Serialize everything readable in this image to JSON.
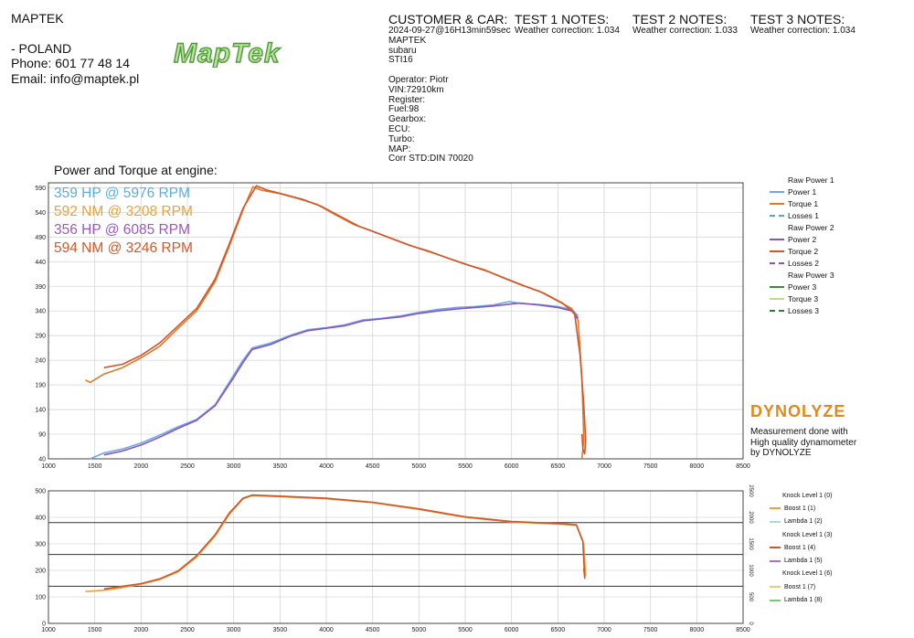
{
  "company": {
    "name": "MAPTEK",
    "country": " - POLAND",
    "phone": "Phone:  601 77 48 14",
    "email": "Email: info@maptek.pl",
    "logo_text": "MapTek"
  },
  "customer": {
    "title": "CUSTOMER & CAR:",
    "lines": [
      "2024-09-27@16H13min59sec",
      "MAPTEK",
      "subaru",
      "STI16",
      "",
      "Operator: Piotr",
      "VIN:72910km",
      "Register:",
      "Fuel:98",
      "Gearbox:",
      "ECU:",
      "Turbo:",
      "MAP:",
      "Corr STD:DIN 70020"
    ]
  },
  "notes": [
    {
      "title": "TEST 1 NOTES:",
      "text": "Weather correction: 1.034"
    },
    {
      "title": "TEST 2 NOTES:",
      "text": "Weather correction: 1.033"
    },
    {
      "title": "TEST 3 NOTES:",
      "text": "Weather correction: 1.034"
    }
  ],
  "results": {
    "heading": "Power and Torque at engine:",
    "lines": [
      {
        "text": "359 HP @ 5976 RPM",
        "color": "#5aaee0"
      },
      {
        "text": "592 NM @ 3208 RPM",
        "color": "#e8a23a"
      },
      {
        "text": "356 HP @ 6085 RPM",
        "color": "#9b59c0"
      },
      {
        "text": "594 NM @ 3246 RPM",
        "color": "#d5582a"
      }
    ]
  },
  "legend_top": [
    {
      "label": "Raw Power 1",
      "header": true
    },
    {
      "label": "Power 1",
      "color": "#6fa8e8"
    },
    {
      "label": "Torque 1",
      "color": "#e07a2a"
    },
    {
      "label": "Losses 1",
      "color": "#4aa8e0",
      "dashed": true
    },
    {
      "label": "Raw Power 2",
      "header": true
    },
    {
      "label": "Power 2",
      "color": "#8a55b8"
    },
    {
      "label": "Torque 2",
      "color": "#d2552a"
    },
    {
      "label": "Losses 2",
      "color": "#8a55b8",
      "dashed": true
    },
    {
      "label": "Raw Power 3",
      "header": true
    },
    {
      "label": "Power 3",
      "color": "#3f8a3f"
    },
    {
      "label": "Torque 3",
      "color": "#c8d48a"
    },
    {
      "label": "Losses 3",
      "color": "#2f7a3f",
      "dashed": true
    }
  ],
  "legend_bottom": [
    {
      "label": "Knock Level 1 (0)",
      "header": true
    },
    {
      "label": "Boost 1 (1)",
      "color": "#e8a23a"
    },
    {
      "label": "Lambda 1 (2)",
      "color": "#a8d8e8"
    },
    {
      "label": "Knock Level 1 (3)",
      "header": true
    },
    {
      "label": "Boost 1 (4)",
      "color": "#d2552a"
    },
    {
      "label": "Lambda 1 (5)",
      "color": "#b070c8"
    },
    {
      "label": "Knock Level 1 (6)",
      "header": true
    },
    {
      "label": "Boost 1 (7)",
      "color": "#e8d070"
    },
    {
      "label": "Lambda 1 (8)",
      "color": "#70d070"
    }
  ],
  "dynolyze": {
    "logo": "DYNOLYZE",
    "text": [
      "Measurement done with",
      "High quality dynamometer",
      "by DYNOLYZE"
    ]
  },
  "chart_data": [
    {
      "type": "line",
      "title": "Power and Torque at engine:",
      "xlim": [
        1000,
        8500
      ],
      "ylim": [
        40,
        600
      ],
      "x_ticks": [
        1000,
        1500,
        2000,
        2500,
        3000,
        3500,
        4000,
        4500,
        5000,
        5500,
        6000,
        6500,
        7000,
        7500,
        8000,
        8500
      ],
      "y_ticks": [
        40,
        90,
        140,
        190,
        240,
        290,
        340,
        390,
        440,
        490,
        540,
        590
      ],
      "grid": true,
      "series": [
        {
          "name": "Power 1",
          "color": "#6fa8e8",
          "x": [
            1450,
            1600,
            1800,
            2000,
            2200,
            2400,
            2600,
            2800,
            3000,
            3100,
            3200,
            3400,
            3600,
            3800,
            4000,
            4200,
            4400,
            4600,
            4800,
            5000,
            5200,
            5400,
            5600,
            5800,
            5976,
            6100,
            6300,
            6500,
            6650,
            6720
          ],
          "y": [
            40,
            52,
            60,
            72,
            88,
            105,
            120,
            150,
            210,
            240,
            265,
            275,
            290,
            302,
            306,
            312,
            322,
            325,
            330,
            337,
            343,
            347,
            349,
            352,
            359,
            355,
            353,
            349,
            343,
            330
          ]
        },
        {
          "name": "Torque 1",
          "color": "#e07a2a",
          "x": [
            1400,
            1450,
            1600,
            1800,
            2000,
            2200,
            2400,
            2600,
            2800,
            2950,
            3100,
            3208,
            3300,
            3500,
            3700,
            3900,
            4100,
            4300,
            4500,
            4700,
            4900,
            5100,
            5300,
            5500,
            5700,
            5900,
            6100,
            6300,
            6500,
            6650,
            6720,
            6760,
            6780,
            6760
          ],
          "y": [
            200,
            195,
            212,
            225,
            245,
            268,
            305,
            340,
            400,
            470,
            545,
            592,
            585,
            578,
            568,
            556,
            535,
            515,
            502,
            487,
            473,
            462,
            448,
            435,
            424,
            408,
            393,
            380,
            360,
            345,
            320,
            200,
            80,
            40
          ]
        },
        {
          "name": "Power 2",
          "color": "#8a55b8",
          "x": [
            1600,
            1800,
            2000,
            2200,
            2400,
            2600,
            2800,
            3000,
            3100,
            3200,
            3400,
            3600,
            3800,
            4000,
            4200,
            4400,
            4600,
            4800,
            5000,
            5200,
            5400,
            5600,
            5800,
            6085,
            6300,
            6500,
            6650,
            6720
          ],
          "y": [
            48,
            56,
            68,
            84,
            102,
            118,
            148,
            205,
            235,
            262,
            272,
            288,
            300,
            305,
            310,
            320,
            324,
            328,
            335,
            340,
            344,
            347,
            350,
            356,
            352,
            347,
            340,
            325
          ]
        },
        {
          "name": "Torque 2",
          "color": "#d2552a",
          "x": [
            1600,
            1800,
            2000,
            2200,
            2400,
            2600,
            2800,
            2950,
            3100,
            3246,
            3350,
            3550,
            3750,
            3950,
            4150,
            4350,
            4550,
            4750,
            4950,
            5150,
            5350,
            5550,
            5750,
            5950,
            6150,
            6350,
            6550,
            6680,
            6740,
            6780,
            6800,
            6790,
            6770,
            6760
          ],
          "y": [
            225,
            232,
            250,
            275,
            310,
            345,
            405,
            475,
            548,
            594,
            586,
            576,
            566,
            552,
            532,
            512,
            498,
            484,
            470,
            458,
            445,
            432,
            420,
            405,
            390,
            376,
            356,
            335,
            250,
            150,
            80,
            50,
            60,
            90
          ]
        }
      ]
    },
    {
      "type": "line",
      "xlim": [
        1000,
        8500
      ],
      "ylim": [
        0,
        500
      ],
      "y2lim": [
        0,
        2500
      ],
      "x_ticks": [
        1000,
        1500,
        2000,
        2500,
        3000,
        3500,
        4000,
        4500,
        5000,
        5500,
        6000,
        6500,
        7000,
        7500,
        8000,
        8500
      ],
      "y_ticks": [
        0,
        100,
        200,
        300,
        400,
        500
      ],
      "y2_ticks": [
        0,
        500,
        1000,
        1500,
        2000,
        2500
      ],
      "hlines": [
        140,
        260,
        380
      ],
      "grid": true,
      "series": [
        {
          "name": "Boost 1 (1)",
          "color": "#e8a23a",
          "x": [
            1400,
            1600,
            1800,
            2000,
            2200,
            2400,
            2600,
            2800,
            2950,
            3100,
            3200,
            3500,
            4000,
            4500,
            5000,
            5500,
            6000,
            6500,
            6700,
            6780,
            6800,
            6790
          ],
          "y": [
            120,
            125,
            135,
            148,
            165,
            195,
            250,
            330,
            410,
            470,
            482,
            478,
            470,
            455,
            430,
            400,
            382,
            375,
            370,
            300,
            180,
            200
          ]
        },
        {
          "name": "Boost 1 (4)",
          "color": "#d2552a",
          "x": [
            1600,
            1800,
            2000,
            2200,
            2400,
            2600,
            2800,
            2950,
            3100,
            3200,
            3500,
            4000,
            4500,
            5000,
            5500,
            6000,
            6500,
            6700,
            6770,
            6790,
            6780
          ],
          "y": [
            130,
            140,
            150,
            168,
            198,
            255,
            335,
            415,
            472,
            484,
            480,
            472,
            457,
            432,
            402,
            384,
            377,
            372,
            310,
            170,
            210
          ]
        }
      ]
    }
  ]
}
